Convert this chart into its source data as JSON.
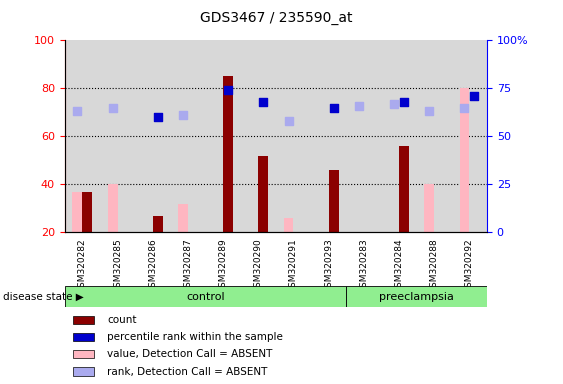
{
  "title": "GDS3467 / 235590_at",
  "samples": [
    "GSM320282",
    "GSM320285",
    "GSM320286",
    "GSM320287",
    "GSM320289",
    "GSM320290",
    "GSM320291",
    "GSM320293",
    "GSM320283",
    "GSM320284",
    "GSM320288",
    "GSM320292"
  ],
  "groups": [
    "control",
    "control",
    "control",
    "control",
    "control",
    "control",
    "control",
    "control",
    "preeclampsia",
    "preeclampsia",
    "preeclampsia",
    "preeclampsia"
  ],
  "count": [
    37,
    null,
    27,
    null,
    85,
    52,
    null,
    46,
    null,
    56,
    null,
    null
  ],
  "percentile_rank": [
    null,
    null,
    60,
    null,
    74,
    68,
    null,
    65,
    null,
    68,
    null,
    71
  ],
  "value_absent": [
    37,
    40,
    null,
    32,
    null,
    null,
    26,
    null,
    null,
    null,
    40,
    80
  ],
  "rank_absent": [
    63,
    65,
    null,
    61,
    null,
    null,
    58,
    null,
    66,
    67,
    63,
    65
  ],
  "ylim_left": [
    20,
    100
  ],
  "ylim_right": [
    0,
    100
  ],
  "yticks_left": [
    20,
    40,
    60,
    80,
    100
  ],
  "yticks_right": [
    0,
    25,
    50,
    75,
    100
  ],
  "yticklabels_right": [
    "0",
    "25",
    "50",
    "75",
    "100%"
  ],
  "color_count": "#8B0000",
  "color_percentile": "#0000CD",
  "color_value_absent": "#FFB6C1",
  "color_rank_absent": "#AAAAEE",
  "n_control": 8,
  "n_pre": 4,
  "legend_items": [
    {
      "label": "count",
      "color": "#8B0000"
    },
    {
      "label": "percentile rank within the sample",
      "color": "#0000CD"
    },
    {
      "label": "value, Detection Call = ABSENT",
      "color": "#FFB6C1"
    },
    {
      "label": "rank, Detection Call = ABSENT",
      "color": "#AAAAEE"
    }
  ]
}
